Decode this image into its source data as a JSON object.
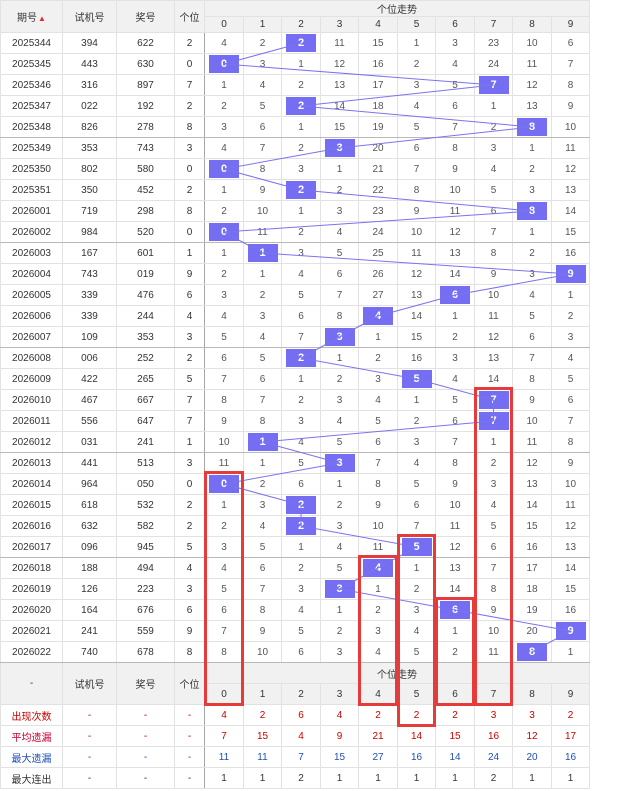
{
  "header": {
    "col_issue": "期号",
    "col_trial": "试机号",
    "col_prize": "奖号",
    "col_units": "个位",
    "trend_title": "个位走势",
    "digits": [
      "0",
      "1",
      "2",
      "3",
      "4",
      "5",
      "6",
      "7",
      "8",
      "9"
    ]
  },
  "rows": [
    {
      "issue": "2025344",
      "trial": "394",
      "prize": "622",
      "units": "2",
      "cells": [
        "4",
        "2",
        "2",
        "11",
        "15",
        "1",
        "3",
        "23",
        "10",
        "6"
      ]
    },
    {
      "issue": "2025345",
      "trial": "443",
      "prize": "630",
      "units": "0",
      "cells": [
        "0",
        "3",
        "1",
        "12",
        "16",
        "2",
        "4",
        "24",
        "11",
        "7"
      ]
    },
    {
      "issue": "2025346",
      "trial": "316",
      "prize": "897",
      "units": "7",
      "cells": [
        "1",
        "4",
        "2",
        "13",
        "17",
        "3",
        "5",
        "7",
        "12",
        "8"
      ]
    },
    {
      "issue": "2025347",
      "trial": "022",
      "prize": "192",
      "units": "2",
      "cells": [
        "2",
        "5",
        "2",
        "14",
        "18",
        "4",
        "6",
        "1",
        "13",
        "9"
      ]
    },
    {
      "issue": "2025348",
      "trial": "826",
      "prize": "278",
      "units": "8",
      "cells": [
        "3",
        "6",
        "1",
        "15",
        "19",
        "5",
        "7",
        "2",
        "8",
        "10"
      ]
    },
    {
      "issue": "2025349",
      "trial": "353",
      "prize": "743",
      "units": "3",
      "cells": [
        "4",
        "7",
        "2",
        "3",
        "20",
        "6",
        "8",
        "3",
        "1",
        "11"
      ]
    },
    {
      "issue": "2025350",
      "trial": "802",
      "prize": "580",
      "units": "0",
      "cells": [
        "0",
        "8",
        "3",
        "1",
        "21",
        "7",
        "9",
        "4",
        "2",
        "12"
      ]
    },
    {
      "issue": "2025351",
      "trial": "350",
      "prize": "452",
      "units": "2",
      "cells": [
        "1",
        "9",
        "2",
        "2",
        "22",
        "8",
        "10",
        "5",
        "3",
        "13"
      ]
    },
    {
      "issue": "2026001",
      "trial": "719",
      "prize": "298",
      "units": "8",
      "cells": [
        "2",
        "10",
        "1",
        "3",
        "23",
        "9",
        "11",
        "6",
        "8",
        "14"
      ]
    },
    {
      "issue": "2026002",
      "trial": "984",
      "prize": "520",
      "units": "0",
      "cells": [
        "0",
        "11",
        "2",
        "4",
        "24",
        "10",
        "12",
        "7",
        "1",
        "15"
      ]
    },
    {
      "issue": "2026003",
      "trial": "167",
      "prize": "601",
      "units": "1",
      "cells": [
        "1",
        "1",
        "3",
        "5",
        "25",
        "11",
        "13",
        "8",
        "2",
        "16"
      ]
    },
    {
      "issue": "2026004",
      "trial": "743",
      "prize": "019",
      "units": "9",
      "cells": [
        "2",
        "1",
        "4",
        "6",
        "26",
        "12",
        "14",
        "9",
        "3",
        "9"
      ]
    },
    {
      "issue": "2026005",
      "trial": "339",
      "prize": "476",
      "units": "6",
      "cells": [
        "3",
        "2",
        "5",
        "7",
        "27",
        "13",
        "6",
        "10",
        "4",
        "1"
      ]
    },
    {
      "issue": "2026006",
      "trial": "339",
      "prize": "244",
      "units": "4",
      "cells": [
        "4",
        "3",
        "6",
        "8",
        "4",
        "14",
        "1",
        "11",
        "5",
        "2"
      ]
    },
    {
      "issue": "2026007",
      "trial": "109",
      "prize": "353",
      "units": "3",
      "cells": [
        "5",
        "4",
        "7",
        "3",
        "1",
        "15",
        "2",
        "12",
        "6",
        "3"
      ]
    },
    {
      "issue": "2026008",
      "trial": "006",
      "prize": "252",
      "units": "2",
      "cells": [
        "6",
        "5",
        "2",
        "1",
        "2",
        "16",
        "3",
        "13",
        "7",
        "4"
      ]
    },
    {
      "issue": "2026009",
      "trial": "422",
      "prize": "265",
      "units": "5",
      "cells": [
        "7",
        "6",
        "1",
        "2",
        "3",
        "5",
        "4",
        "14",
        "8",
        "5"
      ]
    },
    {
      "issue": "2026010",
      "trial": "467",
      "prize": "667",
      "units": "7",
      "cells": [
        "8",
        "7",
        "2",
        "3",
        "4",
        "1",
        "5",
        "7",
        "9",
        "6"
      ]
    },
    {
      "issue": "2026011",
      "trial": "556",
      "prize": "647",
      "units": "7",
      "cells": [
        "9",
        "8",
        "3",
        "4",
        "5",
        "2",
        "6",
        "7",
        "10",
        "7"
      ]
    },
    {
      "issue": "2026012",
      "trial": "031",
      "prize": "241",
      "units": "1",
      "cells": [
        "10",
        "1",
        "4",
        "5",
        "6",
        "3",
        "7",
        "1",
        "11",
        "8"
      ]
    },
    {
      "issue": "2026013",
      "trial": "441",
      "prize": "513",
      "units": "3",
      "cells": [
        "11",
        "1",
        "5",
        "3",
        "7",
        "4",
        "8",
        "2",
        "12",
        "9"
      ]
    },
    {
      "issue": "2026014",
      "trial": "964",
      "prize": "050",
      "units": "0",
      "cells": [
        "0",
        "2",
        "6",
        "1",
        "8",
        "5",
        "9",
        "3",
        "13",
        "10"
      ]
    },
    {
      "issue": "2026015",
      "trial": "618",
      "prize": "532",
      "units": "2",
      "cells": [
        "1",
        "3",
        "2",
        "2",
        "9",
        "6",
        "10",
        "4",
        "14",
        "11"
      ]
    },
    {
      "issue": "2026016",
      "trial": "632",
      "prize": "582",
      "units": "2",
      "cells": [
        "2",
        "4",
        "2",
        "3",
        "10",
        "7",
        "11",
        "5",
        "15",
        "12"
      ]
    },
    {
      "issue": "2026017",
      "trial": "096",
      "prize": "945",
      "units": "5",
      "cells": [
        "3",
        "5",
        "1",
        "4",
        "11",
        "5",
        "12",
        "6",
        "16",
        "13"
      ]
    },
    {
      "issue": "2026018",
      "trial": "188",
      "prize": "494",
      "units": "4",
      "cells": [
        "4",
        "6",
        "2",
        "5",
        "4",
        "1",
        "13",
        "7",
        "17",
        "14"
      ]
    },
    {
      "issue": "2026019",
      "trial": "126",
      "prize": "223",
      "units": "3",
      "cells": [
        "5",
        "7",
        "3",
        "3",
        "1",
        "2",
        "14",
        "8",
        "18",
        "15"
      ]
    },
    {
      "issue": "2026020",
      "trial": "164",
      "prize": "676",
      "units": "6",
      "cells": [
        "6",
        "8",
        "4",
        "1",
        "2",
        "3",
        "6",
        "9",
        "19",
        "16"
      ]
    },
    {
      "issue": "2026021",
      "trial": "241",
      "prize": "559",
      "units": "9",
      "cells": [
        "7",
        "9",
        "5",
        "2",
        "3",
        "4",
        "1",
        "10",
        "20",
        "9"
      ]
    },
    {
      "issue": "2026022",
      "trial": "740",
      "prize": "678",
      "units": "8",
      "cells": [
        "8",
        "10",
        "6",
        "3",
        "4",
        "5",
        "2",
        "11",
        "8",
        "1"
      ]
    }
  ],
  "footer_header": {
    "dash": "-",
    "col_trial": "试机号",
    "col_prize": "奖号",
    "col_units": "个位",
    "trend_title": "个位走势"
  },
  "stats": [
    {
      "label": "出现次数",
      "values": [
        "4",
        "2",
        "6",
        "4",
        "2",
        "2",
        "2",
        "3",
        "3",
        "2"
      ]
    },
    {
      "label": "平均遗漏",
      "values": [
        "7",
        "15",
        "4",
        "9",
        "21",
        "14",
        "15",
        "16",
        "12",
        "17"
      ]
    },
    {
      "label": "最大遗漏",
      "values": [
        "11",
        "11",
        "7",
        "15",
        "27",
        "16",
        "14",
        "24",
        "20",
        "16"
      ]
    },
    {
      "label": "最大连出",
      "values": [
        "1",
        "1",
        "2",
        "1",
        "1",
        "1",
        "1",
        "2",
        "1",
        "1"
      ]
    }
  ],
  "colors": {
    "ball": "#756ef2",
    "line": "#7a73ee",
    "highlight": "#e53b3b"
  }
}
